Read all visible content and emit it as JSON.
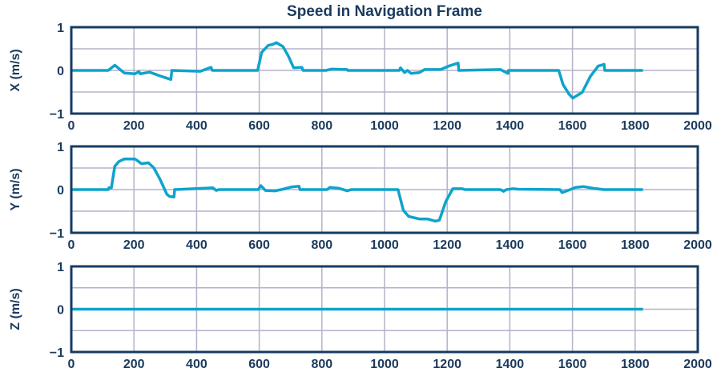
{
  "chart_data": [
    {
      "type": "line",
      "title": "Speed in Navigation Frame",
      "ylabel": "X (m/s)",
      "xlabel": "",
      "xlim": [
        0,
        2000
      ],
      "ylim": [
        -1,
        1
      ],
      "xticks": [
        "0",
        "200",
        "400",
        "600",
        "800",
        "1000",
        "1200",
        "1400",
        "1600",
        "1800",
        "2000"
      ],
      "yticks": [
        "1",
        "0",
        "−1"
      ],
      "grid": true,
      "color": "#0ea3cc",
      "series": [
        {
          "name": "X",
          "x": [
            0,
            118,
            139,
            169,
            203,
            216,
            220,
            250,
            284,
            318,
            321,
            412,
            446,
            450,
            595,
            608,
            629,
            642,
            655,
            676,
            693,
            710,
            736,
            740,
            813,
            830,
            880,
            882,
            1047,
            1051,
            1064,
            1073,
            1085,
            1111,
            1128,
            1153,
            1179,
            1205,
            1235,
            1237,
            1370,
            1394,
            1396,
            1556,
            1570,
            1589,
            1601,
            1631,
            1657,
            1682,
            1701,
            1703,
            1825
          ],
          "y": [
            0,
            0,
            0.12,
            -0.06,
            -0.08,
            -0.03,
            -0.08,
            -0.04,
            -0.13,
            -0.21,
            0,
            -0.02,
            0.07,
            0,
            0,
            0.42,
            0.58,
            0.6,
            0.64,
            0.55,
            0.33,
            0.06,
            0.07,
            0,
            0,
            0.03,
            0.02,
            0,
            0,
            0.06,
            -0.05,
            0,
            -0.07,
            -0.05,
            0.02,
            0.02,
            0.02,
            0.1,
            0.17,
            0,
            0.02,
            -0.07,
            0,
            0,
            -0.33,
            -0.55,
            -0.64,
            -0.51,
            -0.14,
            0.1,
            0.14,
            0,
            0
          ]
        }
      ]
    },
    {
      "type": "line",
      "ylabel": "Y (m/s)",
      "xlim": [
        0,
        2000
      ],
      "ylim": [
        -1,
        1
      ],
      "xticks": [
        "0",
        "200",
        "400",
        "600",
        "800",
        "1000",
        "1200",
        "1400",
        "1600",
        "1800",
        "2000"
      ],
      "yticks": [
        "1",
        "0",
        "−1"
      ],
      "grid": true,
      "color": "#0ea3cc",
      "series": [
        {
          "name": "Y",
          "x": [
            0,
            118,
            120,
            128,
            139,
            152,
            169,
            203,
            211,
            224,
            246,
            263,
            284,
            305,
            314,
            328,
            330,
            420,
            452,
            463,
            470,
            597,
            605,
            620,
            650,
            676,
            702,
            727,
            730,
            817,
            825,
            855,
            881,
            893,
            1043,
            1060,
            1077,
            1111,
            1137,
            1162,
            1175,
            1196,
            1218,
            1248,
            1257,
            1370,
            1380,
            1389,
            1410,
            1427,
            1560,
            1567,
            1589,
            1610,
            1635,
            1666,
            1700,
            1825
          ],
          "y": [
            0,
            0,
            0.04,
            0.04,
            0.54,
            0.65,
            0.71,
            0.71,
            0.67,
            0.6,
            0.62,
            0.51,
            0.23,
            -0.11,
            -0.16,
            -0.17,
            0,
            0.03,
            0.04,
            -0.02,
            0,
            0,
            0.09,
            -0.02,
            -0.03,
            0.01,
            0.06,
            0.08,
            0,
            0,
            0.05,
            0.03,
            -0.03,
            0,
            0,
            -0.48,
            -0.62,
            -0.68,
            -0.68,
            -0.73,
            -0.71,
            -0.27,
            0.02,
            0.02,
            0,
            0,
            -0.04,
            0,
            0.02,
            0.01,
            0,
            -0.07,
            -0.01,
            0.05,
            0.07,
            0.03,
            0,
            0
          ]
        }
      ]
    },
    {
      "type": "line",
      "ylabel": "Z (m/s)",
      "xlim": [
        0,
        2000
      ],
      "ylim": [
        -1,
        1
      ],
      "xticks": [
        "0",
        "200",
        "400",
        "600",
        "800",
        "1000",
        "1200",
        "1400",
        "1600",
        "1800",
        "2000"
      ],
      "yticks": [
        "1",
        "0",
        "−1"
      ],
      "grid": true,
      "color": "#0ea3cc",
      "series": [
        {
          "name": "Z",
          "x": [
            0,
            1825
          ],
          "y": [
            0,
            0
          ]
        }
      ]
    }
  ]
}
